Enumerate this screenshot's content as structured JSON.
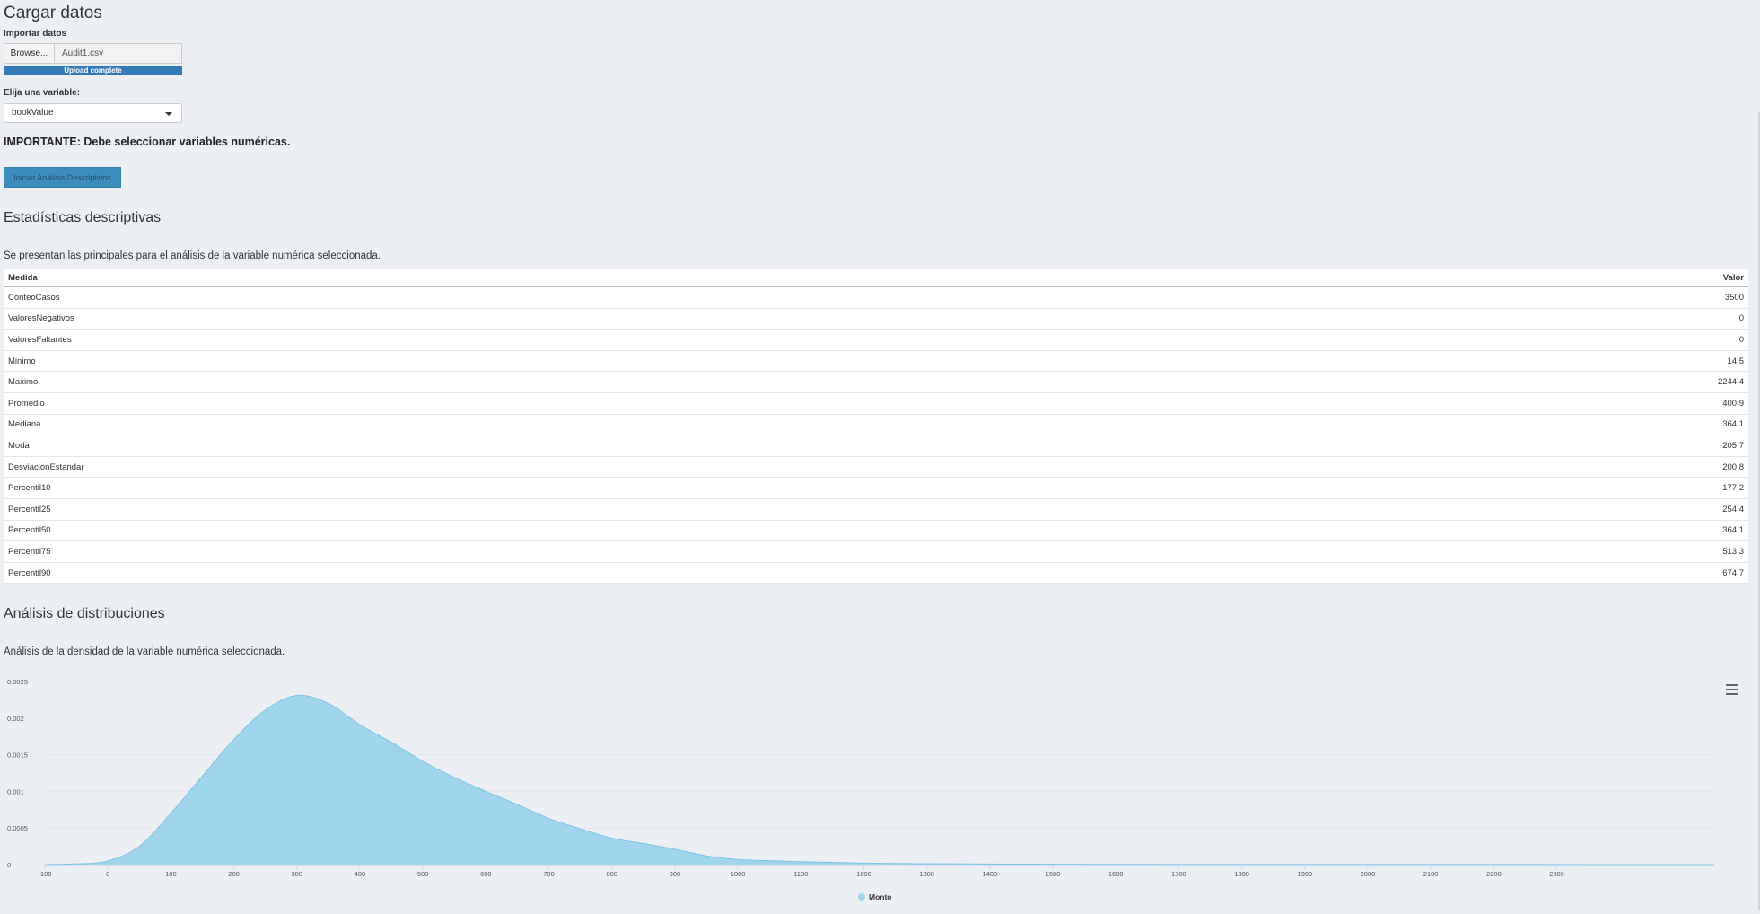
{
  "section_load": {
    "title": "Cargar datos",
    "import_label": "Importar datos",
    "browse_label": "Browse...",
    "file_name": "Audit1.csv",
    "upload_status": "Upload complete",
    "upload_progress": 100,
    "variable_label": "Elija una variable:",
    "variable_value": "bookValue",
    "important_note": "IMPORTANTE: Debe seleccionar variables numéricas.",
    "start_button": "Iniciar Análisis Descriptivos"
  },
  "section_stats": {
    "title": "Estadísticas descriptivas",
    "description": "Se presentan las principales para el análisis de la variable numérica seleccionada.",
    "columns": [
      "Medida",
      "Valor"
    ],
    "rows": [
      {
        "medida": "ConteoCasos",
        "valor": "3500"
      },
      {
        "medida": "ValoresNegativos",
        "valor": "0"
      },
      {
        "medida": "ValoresFaltantes",
        "valor": "0"
      },
      {
        "medida": "Minimo",
        "valor": "14.5"
      },
      {
        "medida": "Maximo",
        "valor": "2244.4"
      },
      {
        "medida": "Promedio",
        "valor": "400.9"
      },
      {
        "medida": "Mediana",
        "valor": "364.1"
      },
      {
        "medida": "Moda",
        "valor": "205.7"
      },
      {
        "medida": "DesviacionEstandar",
        "valor": "200.8"
      },
      {
        "medida": "Percentil10",
        "valor": "177.2"
      },
      {
        "medida": "Percentil25",
        "valor": "254.4"
      },
      {
        "medida": "Percentil50",
        "valor": "364.1"
      },
      {
        "medida": "Percentil75",
        "valor": "513.3"
      },
      {
        "medida": "Percentil90",
        "valor": "674.7"
      }
    ]
  },
  "section_dist": {
    "title": "Análisis de distribuciones",
    "description": "Análisis de la densidad de la variable numérica seleccionada."
  },
  "colors": {
    "area_fill": "#9fd4ed",
    "area_stroke": "#7cc3e6",
    "button": "#3c8dbc",
    "progress": "#337ab7"
  },
  "chart_data": {
    "type": "area",
    "title": "",
    "xlabel": "",
    "ylabel": "",
    "xlim": [
      -100,
      2550
    ],
    "ylim": [
      0,
      0.0025
    ],
    "x_ticks": [
      -100,
      0,
      100,
      200,
      300,
      400,
      500,
      600,
      700,
      800,
      900,
      1000,
      1100,
      1200,
      1300,
      1400,
      1500,
      1600,
      1700,
      1800,
      1900,
      2000,
      2100,
      2200,
      2300
    ],
    "y_ticks": [
      0,
      0.0005,
      0.001,
      0.0015,
      0.002,
      0.0025
    ],
    "y_tick_labels": [
      "0",
      "0.0005",
      "0.001",
      "0.0015",
      "0.002",
      "0.0025"
    ],
    "legend_position": "bottom-center",
    "grid": true,
    "series": [
      {
        "name": "Monto",
        "x": [
          -100,
          -50,
          0,
          50,
          100,
          150,
          200,
          250,
          300,
          350,
          400,
          450,
          500,
          550,
          600,
          650,
          700,
          750,
          800,
          850,
          900,
          950,
          1000,
          1100,
          1200,
          1300,
          1400,
          1500,
          1600,
          1800,
          2000,
          2200,
          2400,
          2550
        ],
        "y": [
          0,
          1e-05,
          5e-05,
          0.00025,
          0.0007,
          0.00121,
          0.00171,
          0.00211,
          0.00231,
          0.0022,
          0.00191,
          0.00167,
          0.00141,
          0.00119,
          0.001,
          0.00082,
          0.00063,
          0.00049,
          0.00036,
          0.00029,
          0.00021,
          0.00012,
          7e-05,
          4e-05,
          2e-05,
          1.2e-05,
          8e-06,
          5e-06,
          3e-06,
          2e-06,
          1e-06,
          1e-06,
          5e-07,
          0
        ]
      }
    ]
  }
}
